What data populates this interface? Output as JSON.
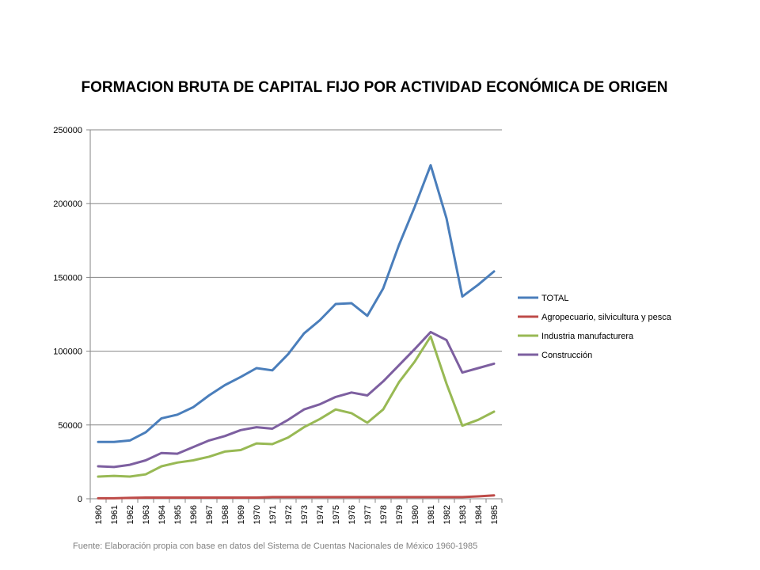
{
  "chart_data": {
    "type": "line",
    "title": "FORMACION BRUTA DE CAPITAL FIJO POR ACTIVIDAD ECONÓMICA DE ORIGEN",
    "xlabel": "",
    "ylabel": "",
    "ylim": [
      0,
      250000
    ],
    "yticks": [
      "0",
      "50000",
      "100000",
      "150000",
      "200000",
      "250000"
    ],
    "grid": true,
    "legend_position": "right",
    "x": [
      "1960",
      "1961",
      "1962",
      "1963",
      "1964",
      "1965",
      "1966",
      "1967",
      "1968",
      "1969",
      "1970",
      "1971",
      "1972",
      "1973",
      "1974",
      "1975",
      "1976",
      "1977",
      "1978",
      "1979",
      "1980",
      "1981",
      "1982",
      "1983",
      "1984",
      "1985"
    ],
    "series": [
      {
        "name": "TOTAL",
        "color": "#4a7ebb",
        "values": [
          38500,
          38500,
          39500,
          45000,
          54500,
          57000,
          62000,
          70000,
          77000,
          82500,
          88500,
          87000,
          98000,
          112000,
          121000,
          132000,
          132500,
          124000,
          142500,
          172000,
          198000,
          226000,
          190000,
          137000,
          145000,
          154000
        ]
      },
      {
        "name": "Agropecuario, silvicultura y pesca",
        "color": "#be4b48",
        "values": [
          300,
          300,
          600,
          800,
          800,
          800,
          800,
          800,
          800,
          800,
          800,
          1100,
          1100,
          1100,
          1100,
          1100,
          1100,
          1100,
          1100,
          1100,
          1100,
          1100,
          1100,
          1100,
          1600,
          2300
        ]
      },
      {
        "name": "Industria manufacturera",
        "color": "#98b954",
        "values": [
          15000,
          15500,
          15000,
          16500,
          22000,
          24500,
          26000,
          28500,
          32000,
          33000,
          37500,
          37000,
          41500,
          48500,
          54000,
          60500,
          58000,
          51500,
          60500,
          79000,
          93000,
          110000,
          78000,
          49500,
          53500,
          59000
        ]
      },
      {
        "name": "Construcción",
        "color": "#7d5fa0",
        "values": [
          22000,
          21500,
          23000,
          26000,
          31000,
          30500,
          35000,
          39500,
          42500,
          46500,
          48500,
          47500,
          53500,
          60500,
          64000,
          69000,
          72000,
          70000,
          79500,
          90500,
          101500,
          113000,
          107500,
          85500,
          88500,
          91500
        ]
      }
    ]
  },
  "source_note": "Fuente: Elaboración propia con base en datos del Sistema de Cuentas Nacionales de México 1960-1985"
}
